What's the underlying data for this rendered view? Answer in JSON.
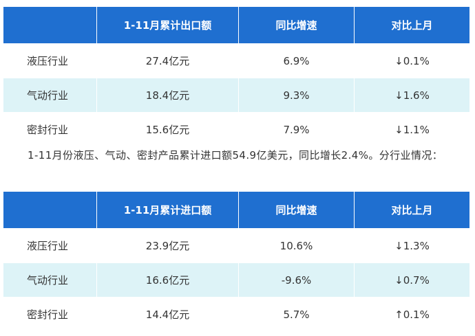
{
  "export_table": {
    "headers": [
      "",
      "1-11月累计出口额",
      "同比增速",
      "对比上月"
    ],
    "rows": [
      {
        "industry": "液压行业",
        "amount": "27.4亿元",
        "growth": "6.9%",
        "mom": "↓0.1%"
      },
      {
        "industry": "气动行业",
        "amount": "18.4亿元",
        "growth": "9.3%",
        "mom": "↓1.6%"
      },
      {
        "industry": "密封行业",
        "amount": "15.6亿元",
        "growth": "7.9%",
        "mom": "↓1.1%"
      }
    ]
  },
  "paragraph": "1-11月份液压、气动、密封产品累计进口额54.9亿美元，同比增长2.4%。分行业情况：",
  "import_table": {
    "headers": [
      "",
      "1-11月累计进口额",
      "同比增速",
      "对比上月"
    ],
    "rows": [
      {
        "industry": "液压行业",
        "amount": "23.9亿元",
        "growth": "10.6%",
        "mom": "↓1.3%"
      },
      {
        "industry": "气动行业",
        "amount": "16.6亿元",
        "growth": "-9.6%",
        "mom": "↓0.7%"
      },
      {
        "industry": "密封行业",
        "amount": "14.4亿元",
        "growth": "5.7%",
        "mom": "↑0.1%"
      }
    ]
  }
}
